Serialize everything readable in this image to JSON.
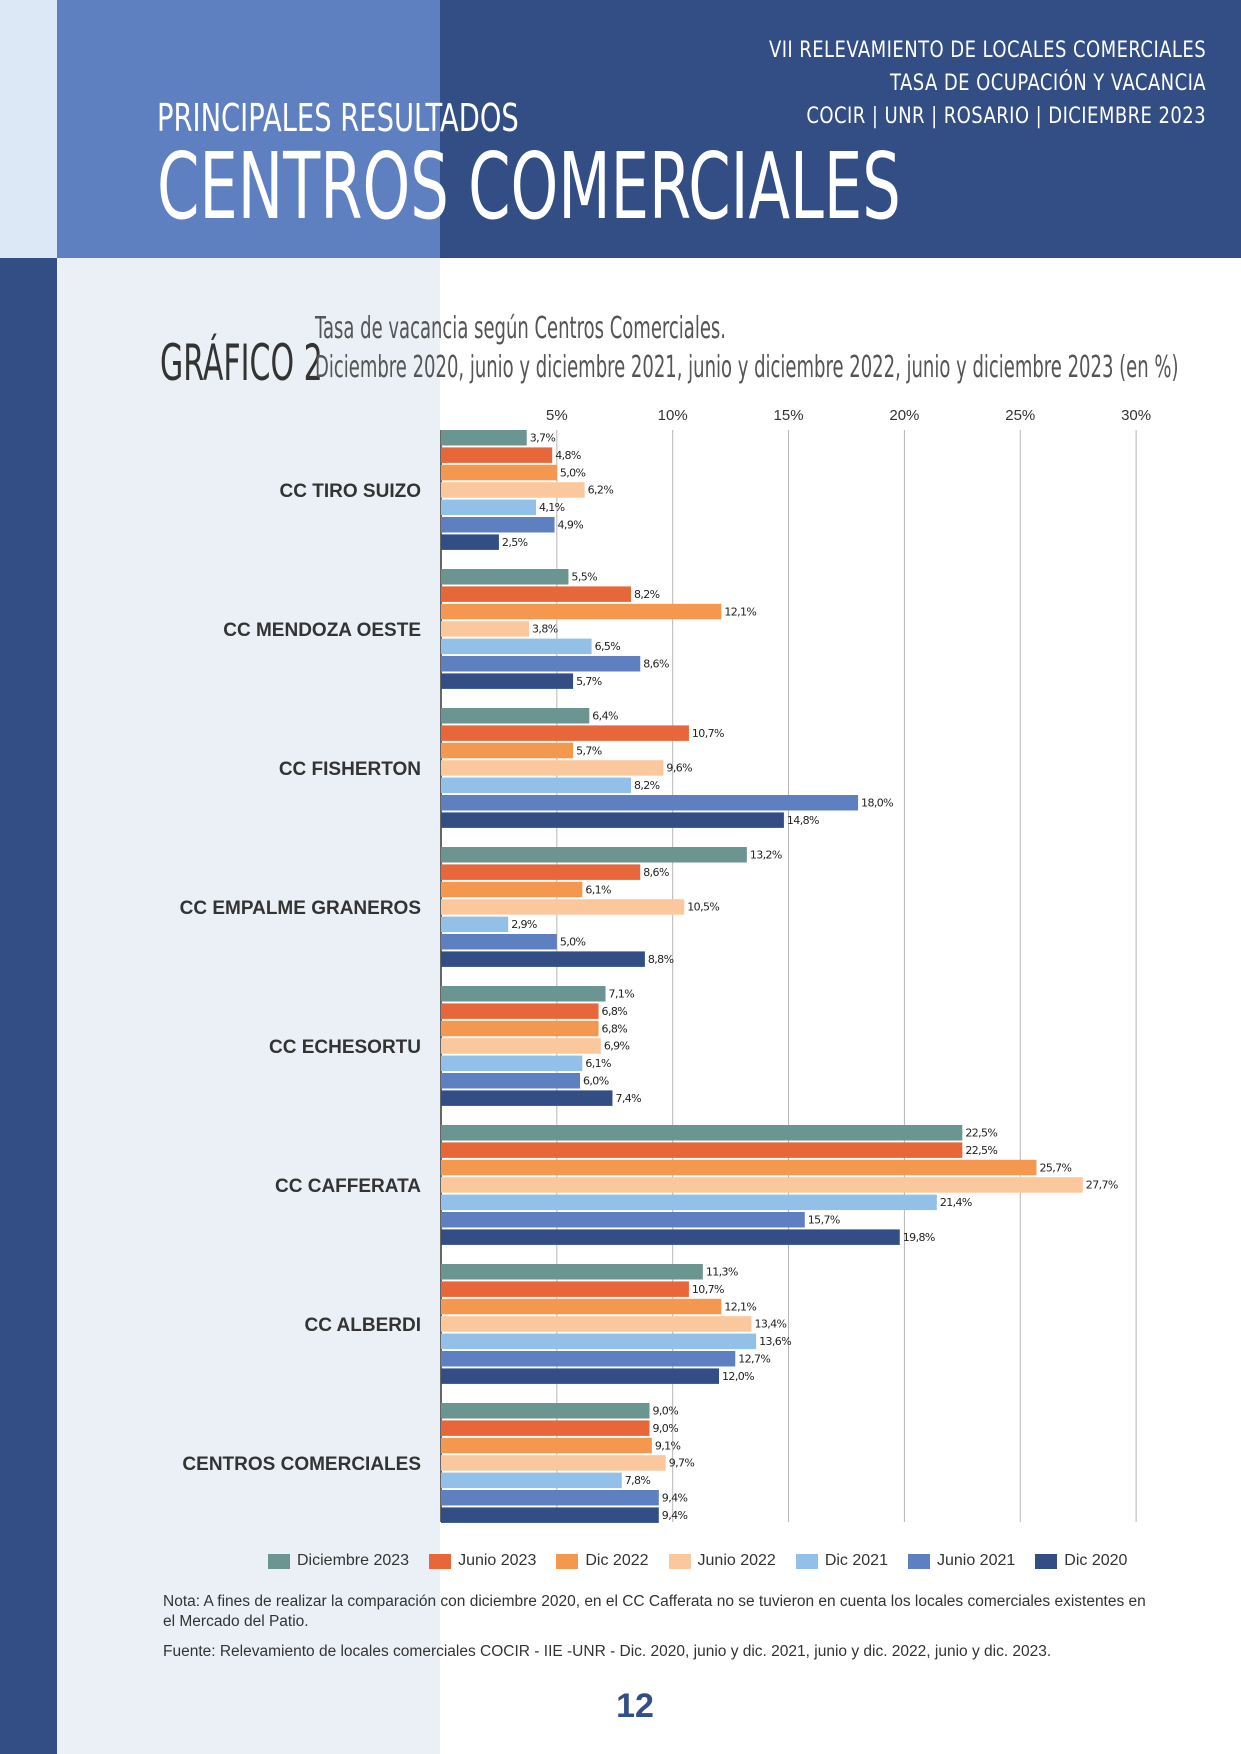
{
  "header": {
    "kicker": "PRINCIPALES RESULTADOS",
    "title": "CENTROS COMERCIALES",
    "report_lines": [
      "VII RELEVAMIENTO DE LOCALES COMERCIALES",
      "TASA DE OCUPACIÓN Y VACANCIA",
      "COCIR | UNR | ROSARIO | DICIEMBRE 2023"
    ]
  },
  "chart_label": "GRÁFICO 2",
  "chart_data": {
    "type": "bar",
    "orientation": "horizontal",
    "title": "Tasa de vacancia según Centros Comerciales.",
    "subtitle": "Diciembre 2020, junio y diciembre 2021, junio y diciembre 2022, junio y diciembre 2023 (en %)",
    "xlim": [
      0,
      30
    ],
    "x_ticks": [
      5,
      10,
      15,
      20,
      25,
      30
    ],
    "x_tick_labels": [
      "5%",
      "10%",
      "15%",
      "20%",
      "25%",
      "30%"
    ],
    "grid": "vertical",
    "legend_position": "bottom",
    "categories": [
      "CC TIRO SUIZO",
      "CC MENDOZA OESTE",
      "CC FISHERTON",
      "CC EMPALME GRANEROS",
      "CC ECHESORTU",
      "CC CAFFERATA",
      "CC ALBERDI",
      "CENTROS COMERCIALES"
    ],
    "series": [
      {
        "name": "Diciembre 2023",
        "color": "#6b9590",
        "values": [
          3.7,
          5.5,
          6.4,
          13.2,
          7.1,
          22.5,
          11.3,
          9.0
        ],
        "labels": [
          "3,7%",
          "5,5%",
          "6,4%",
          "13,2%",
          "7,1%",
          "22,5%",
          "11,3%",
          "9,0%"
        ]
      },
      {
        "name": "Junio 2023",
        "color": "#e8673a",
        "values": [
          4.8,
          8.2,
          10.7,
          8.6,
          6.8,
          22.5,
          10.7,
          9.0
        ],
        "labels": [
          "4,8%",
          "8,2%",
          "10,7%",
          "8,6%",
          "6,8%",
          "22,5%",
          "10,7%",
          "9,0%"
        ]
      },
      {
        "name": "Dic 2022",
        "color": "#f4984f",
        "values": [
          5.0,
          12.1,
          5.7,
          6.1,
          6.8,
          25.7,
          12.1,
          9.1
        ],
        "labels": [
          "5,0%",
          "12,1%",
          "5,7%",
          "6,1%",
          "6,8%",
          "25,7%",
          "12,1%",
          "9,1%"
        ]
      },
      {
        "name": "Junio 2022",
        "color": "#fbc89e",
        "values": [
          6.2,
          3.8,
          9.6,
          10.5,
          6.9,
          27.7,
          13.4,
          9.7
        ],
        "labels": [
          "6,2%",
          "3,8%",
          "9,6%",
          "10,5%",
          "6,9%",
          "27,7%",
          "13,4%",
          "9,7%"
        ]
      },
      {
        "name": "Dic 2021",
        "color": "#92c0e8",
        "values": [
          4.1,
          6.5,
          8.2,
          2.9,
          6.1,
          21.4,
          13.6,
          7.8
        ],
        "labels": [
          "4,1%",
          "6,5%",
          "8,2%",
          "2,9%",
          "6,1%",
          "21,4%",
          "13,6%",
          "7,8%"
        ]
      },
      {
        "name": "Junio 2021",
        "color": "#5f80c0",
        "values": [
          4.9,
          8.6,
          18.0,
          5.0,
          6.0,
          15.7,
          12.7,
          9.4
        ],
        "labels": [
          "4,9%",
          "8,6%",
          "18,0%",
          "5,0%",
          "6,0%",
          "15,7%",
          "12,7%",
          "9,4%"
        ]
      },
      {
        "name": "Dic 2020",
        "color": "#324e85",
        "values": [
          2.5,
          5.7,
          14.8,
          8.8,
          7.4,
          19.8,
          12.0,
          9.4
        ],
        "labels": [
          "2,5%",
          "5,7%",
          "14,8%",
          "8,8%",
          "7,4%",
          "19,8%",
          "12,0%",
          "9,4%"
        ]
      }
    ]
  },
  "note": "Nota: A fines de realizar la comparación con diciembre 2020, en el CC Cafferata no se tuvieron en cuenta los locales comerciales existentes en el Mercado del Patio.",
  "source": "Fuente: Relevamiento de locales comerciales COCIR - IIE -UNR - Dic. 2020, junio y dic. 2021, junio y dic. 2022, junio y dic. 2023.",
  "page_number": "12"
}
